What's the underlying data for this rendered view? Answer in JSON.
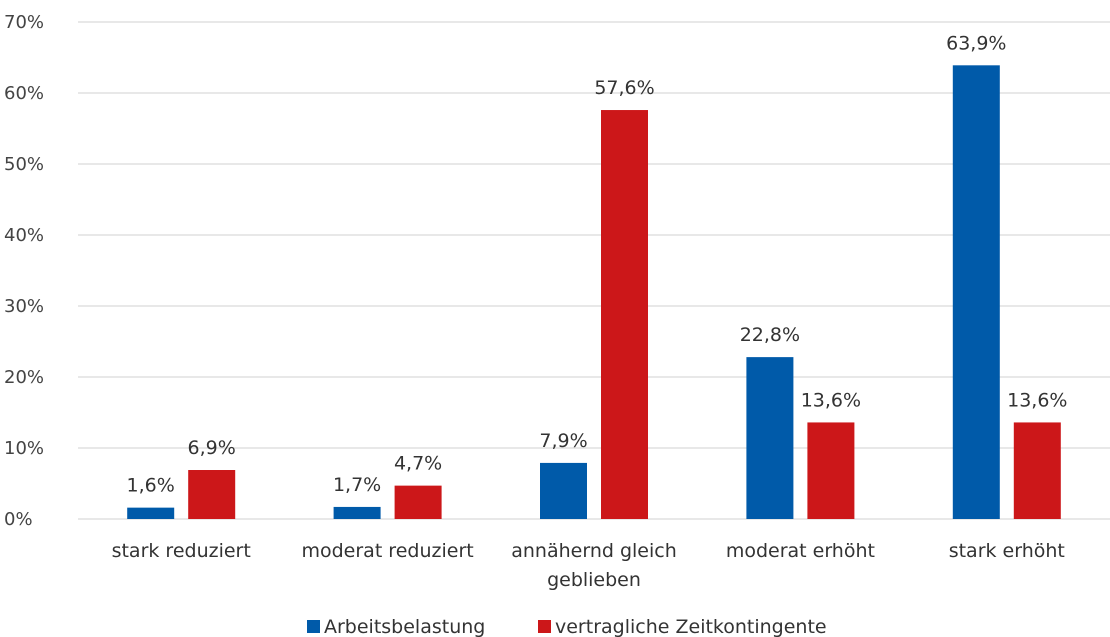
{
  "chart_data": {
    "type": "bar",
    "categories": [
      "stark reduziert",
      "moderat reduziert",
      "annähernd gleich geblieben",
      "moderat erhöht",
      "stark erhöht"
    ],
    "series": [
      {
        "name": "Arbeitsbelastung",
        "color": "#005aa9",
        "values": [
          1.6,
          1.7,
          7.9,
          22.8,
          63.9
        ],
        "labels": [
          "1,6%",
          "1,7%",
          "7,9%",
          "22,8%",
          "63,9%"
        ]
      },
      {
        "name": "vertragliche Zeitkontingente",
        "color": "#cc1719",
        "values": [
          6.9,
          4.7,
          57.6,
          13.6,
          13.6
        ],
        "labels": [
          "6,9%",
          "4,7%",
          "57,6%",
          "13,6%",
          "13,6%"
        ]
      }
    ],
    "ylim": [
      0,
      70
    ],
    "y_ticks": [
      0,
      10,
      20,
      30,
      40,
      50,
      60,
      70
    ],
    "y_tick_labels": [
      "0%",
      "10%",
      "20%",
      "30%",
      "40%",
      "50%",
      "60%",
      "70%"
    ],
    "grid": true,
    "legend_position": "bottom-center",
    "title": "",
    "xlabel": "",
    "ylabel": ""
  }
}
